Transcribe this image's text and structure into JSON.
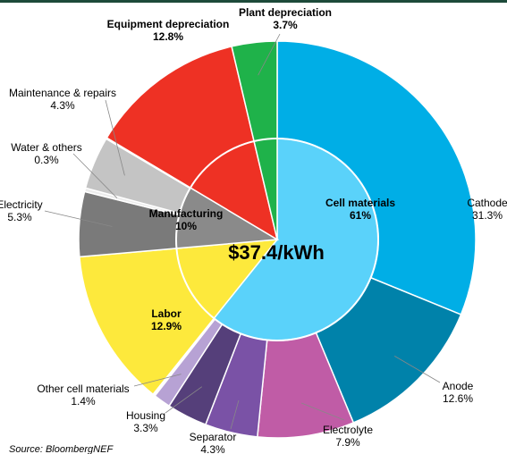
{
  "chart_data": {
    "type": "sunburst",
    "center_label": "$37.4/kWh",
    "source": "Source: BloombergNEF",
    "groups": [
      {
        "name": "Cell materials",
        "value": 61,
        "value_label": "61%",
        "color": "#5ad2fa",
        "children": [
          {
            "name": "Cathode",
            "value": 31.3,
            "value_label": "31.3%",
            "color": "#00aee6"
          },
          {
            "name": "Anode",
            "value": 12.6,
            "value_label": "12.6%",
            "color": "#0082aa"
          },
          {
            "name": "Electrolyte",
            "value": 7.9,
            "value_label": "7.9%",
            "color": "#c05ca6"
          },
          {
            "name": "Separator",
            "value": 4.3,
            "value_label": "4.3%",
            "color": "#7a52a6"
          },
          {
            "name": "Housing",
            "value": 3.3,
            "value_label": "3.3%",
            "color": "#553f7a"
          },
          {
            "name": "Other cell materials",
            "value": 1.4,
            "value_label": "1.4%",
            "color": "#b7a2d4"
          }
        ]
      },
      {
        "name": "Labor",
        "value": 12.9,
        "value_label": "12.9%",
        "color": "#fde93c",
        "children": []
      },
      {
        "name": "Manufacturing",
        "value": 10,
        "value_label": "10%",
        "color": "#8a8a8a",
        "children": [
          {
            "name": "Electricity",
            "value": 5.3,
            "value_label": "5.3%",
            "color": "#7a7a7a"
          },
          {
            "name": "Water & others",
            "value": 0.3,
            "value_label": "0.3%",
            "color": "#ececec"
          },
          {
            "name": "Maintenance & repairs",
            "value": 4.3,
            "value_label": "4.3%",
            "color": "#c4c4c4"
          }
        ]
      },
      {
        "name": "Equipment depreciation",
        "value": 12.8,
        "value_label": "12.8%",
        "color": "#ee3124",
        "children": []
      },
      {
        "name": "Plant depreciation",
        "value": 3.7,
        "value_label": "3.7%",
        "color": "#1fb24a",
        "children": []
      }
    ]
  }
}
